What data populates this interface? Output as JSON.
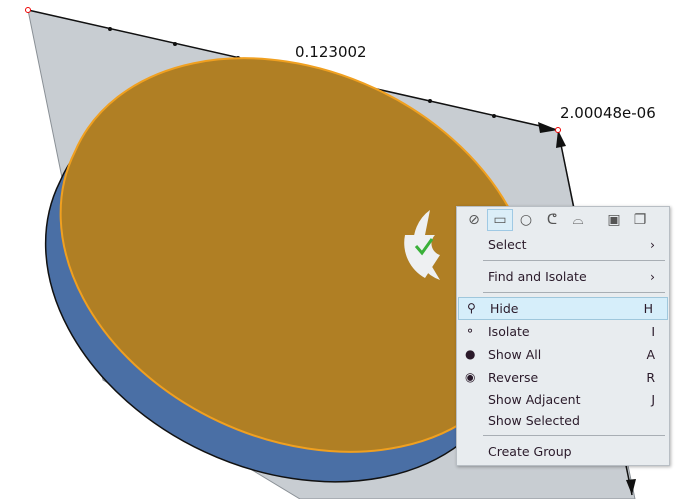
{
  "dimensions": {
    "width_label": "0.123002",
    "thickness_label": "2.00048e-06"
  },
  "colors": {
    "face": "#b07f24",
    "rim": "#4a6fa5",
    "plane": "#c8cdd2",
    "highlight": "#d6eefa"
  },
  "toolbar": {
    "icons": [
      "no-filter-icon",
      "rectangle-select-icon",
      "circle-select-icon",
      "lasso-select-icon",
      "polygon-select-icon",
      "box-icon",
      "copy-icon"
    ]
  },
  "menu": {
    "select": "Select",
    "find_isolate": "Find and Isolate",
    "items": [
      {
        "label": "Hide",
        "shortcut": "H",
        "icon": "hide-icon"
      },
      {
        "label": "Isolate",
        "shortcut": "I",
        "icon": "isolate-icon"
      },
      {
        "label": "Show All",
        "shortcut": "A",
        "icon": "show-all-icon"
      },
      {
        "label": "Reverse",
        "shortcut": "R",
        "icon": "reverse-icon"
      },
      {
        "label": "Show Adjacent",
        "shortcut": "J"
      },
      {
        "label": "Show Selected",
        "shortcut": ""
      }
    ],
    "create_group": "Create Group",
    "arrow": "›"
  }
}
